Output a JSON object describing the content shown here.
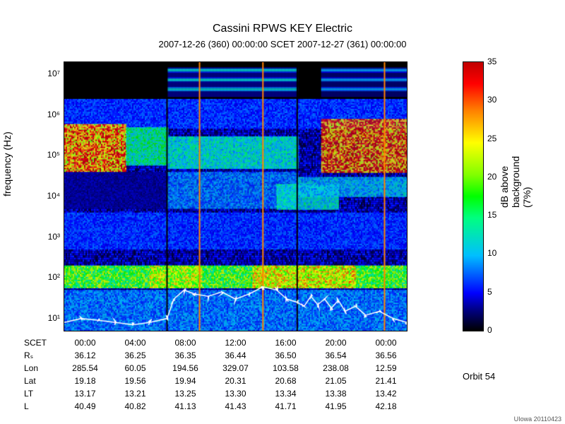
{
  "title": "Cassini RPWS KEY Electric",
  "subtitle": "2007-12-26 (360) 00:00:00    SCET    2007-12-27 (361) 00:00:00",
  "title_fontsize": 16,
  "subtitle_fontsize": 13,
  "ylabel": "frequency (Hz)",
  "cblabel": "dB above background (7%)",
  "orbit": "Orbit 54",
  "footer": "UIowa 20110423",
  "yaxis": {
    "type": "log",
    "min": 5,
    "max": 20000000.0,
    "ticks": [
      10,
      100,
      1000,
      10000,
      100000,
      1000000,
      10000000
    ],
    "tick_labels": [
      "10¹",
      "10²",
      "10³",
      "10⁴",
      "10⁵",
      "10⁶",
      "10⁷"
    ]
  },
  "xaxis_table": {
    "headers": [
      "SCET",
      "Rₛ",
      "Lon",
      "Lat",
      "LT",
      "L"
    ],
    "columns": [
      [
        "00:00",
        "36.12",
        "285.54",
        "19.18",
        "13.17",
        "40.49"
      ],
      [
        "04:00",
        "36.25",
        "60.05",
        "19.56",
        "13.21",
        "40.82"
      ],
      [
        "08:00",
        "36.35",
        "194.56",
        "19.94",
        "13.25",
        "41.13"
      ],
      [
        "12:00",
        "36.44",
        "329.07",
        "20.31",
        "13.30",
        "41.43"
      ],
      [
        "16:00",
        "36.50",
        "103.58",
        "20.68",
        "13.34",
        "41.71"
      ],
      [
        "20:00",
        "36.54",
        "238.08",
        "21.05",
        "13.38",
        "41.95"
      ],
      [
        "00:00",
        "36.56",
        "12.59",
        "21.41",
        "13.42",
        "42.18"
      ]
    ]
  },
  "colorbar": {
    "min": 0,
    "max": 35,
    "ticks": [
      0,
      5,
      10,
      15,
      20,
      25,
      30,
      35
    ],
    "stops": [
      {
        "p": 0.0,
        "c": "#000000"
      },
      {
        "p": 0.08,
        "c": "#000088"
      },
      {
        "p": 0.14,
        "c": "#0000ff"
      },
      {
        "p": 0.28,
        "c": "#00bfff"
      },
      {
        "p": 0.42,
        "c": "#00ff80"
      },
      {
        "p": 0.5,
        "c": "#00ff00"
      },
      {
        "p": 0.58,
        "c": "#80ff00"
      },
      {
        "p": 0.7,
        "c": "#ffff00"
      },
      {
        "p": 0.82,
        "c": "#ff8000"
      },
      {
        "p": 0.92,
        "c": "#ff0000"
      },
      {
        "p": 1.0,
        "c": "#c00000"
      }
    ]
  },
  "spectrogram": {
    "background_color": "#000000",
    "bands": [
      {
        "f_low": 3000000.0,
        "f_high": 15000000.0,
        "t0": 0.0,
        "t1": 0.3,
        "db": 0
      },
      {
        "f_low": 3000000.0,
        "f_high": 15000000.0,
        "t0": 0.3,
        "t1": 0.68,
        "db": 10,
        "stripes": true
      },
      {
        "f_low": 3000000.0,
        "f_high": 15000000.0,
        "t0": 0.68,
        "t1": 0.75,
        "db": 0
      },
      {
        "f_low": 3000000.0,
        "f_high": 15000000.0,
        "t0": 0.75,
        "t1": 1.0,
        "db": 8,
        "stripes": true
      },
      {
        "f_low": 500000.0,
        "f_high": 2500000.0,
        "t0": 0.0,
        "t1": 1.0,
        "db": 6
      },
      {
        "f_low": 40000.0,
        "f_high": 600000.0,
        "t0": 0.0,
        "t1": 0.18,
        "db": 28
      },
      {
        "f_low": 60000.0,
        "f_high": 500000.0,
        "t0": 0.18,
        "t1": 0.3,
        "db": 14
      },
      {
        "f_low": 50000.0,
        "f_high": 300000.0,
        "t0": 0.3,
        "t1": 0.68,
        "db": 12
      },
      {
        "f_low": 40000.0,
        "f_high": 800000.0,
        "t0": 0.75,
        "t1": 1.0,
        "db": 30
      },
      {
        "f_low": 5000.0,
        "f_high": 40000.0,
        "t0": 0.0,
        "t1": 0.3,
        "db": 3
      },
      {
        "f_low": 5000.0,
        "f_high": 40000.0,
        "t0": 0.3,
        "t1": 0.68,
        "db": 8
      },
      {
        "f_low": 5000.0,
        "f_high": 20000.0,
        "t0": 0.62,
        "t1": 0.8,
        "db": 12
      },
      {
        "f_low": 10000.0,
        "f_high": 30000.0,
        "t0": 0.68,
        "t1": 1.0,
        "db": 10
      },
      {
        "f_low": 500.0,
        "f_high": 4000.0,
        "t0": 0.0,
        "t1": 1.0,
        "db": 6
      },
      {
        "f_low": 60,
        "f_high": 200,
        "t0": 0.0,
        "t1": 1.0,
        "db": 18
      },
      {
        "f_low": 60,
        "f_high": 200,
        "t0": 0.25,
        "t1": 0.4,
        "db": 22
      },
      {
        "f_low": 60,
        "f_high": 200,
        "t0": 0.55,
        "t1": 0.85,
        "db": 24
      },
      {
        "f_low": 5,
        "f_high": 50,
        "t0": 0.0,
        "t1": 1.0,
        "db": 8
      }
    ],
    "vertical_lines": [
      {
        "t": 0.3,
        "db": 2,
        "color": "#000000"
      },
      {
        "t": 0.68,
        "db": 2,
        "color": "#000000"
      },
      {
        "t": 0.395,
        "db": 30,
        "color": "#ff8000"
      },
      {
        "t": 0.58,
        "db": 30,
        "color": "#ff8000"
      },
      {
        "t": 0.935,
        "db": 30,
        "color": "#ff8000"
      }
    ],
    "white_line": {
      "color": "#ffffff",
      "width": 1.5,
      "points": [
        [
          0.0,
          8
        ],
        [
          0.05,
          10
        ],
        [
          0.1,
          9
        ],
        [
          0.15,
          8
        ],
        [
          0.2,
          7
        ],
        [
          0.25,
          8
        ],
        [
          0.3,
          10
        ],
        [
          0.32,
          30
        ],
        [
          0.35,
          50
        ],
        [
          0.38,
          40
        ],
        [
          0.42,
          35
        ],
        [
          0.46,
          45
        ],
        [
          0.5,
          30
        ],
        [
          0.54,
          40
        ],
        [
          0.58,
          60
        ],
        [
          0.62,
          50
        ],
        [
          0.65,
          30
        ],
        [
          0.68,
          25
        ],
        [
          0.7,
          20
        ],
        [
          0.72,
          35
        ],
        [
          0.74,
          22
        ],
        [
          0.76,
          30
        ],
        [
          0.78,
          18
        ],
        [
          0.8,
          28
        ],
        [
          0.82,
          15
        ],
        [
          0.85,
          20
        ],
        [
          0.88,
          12
        ],
        [
          0.92,
          15
        ],
        [
          0.96,
          10
        ],
        [
          1.0,
          8
        ]
      ]
    }
  }
}
